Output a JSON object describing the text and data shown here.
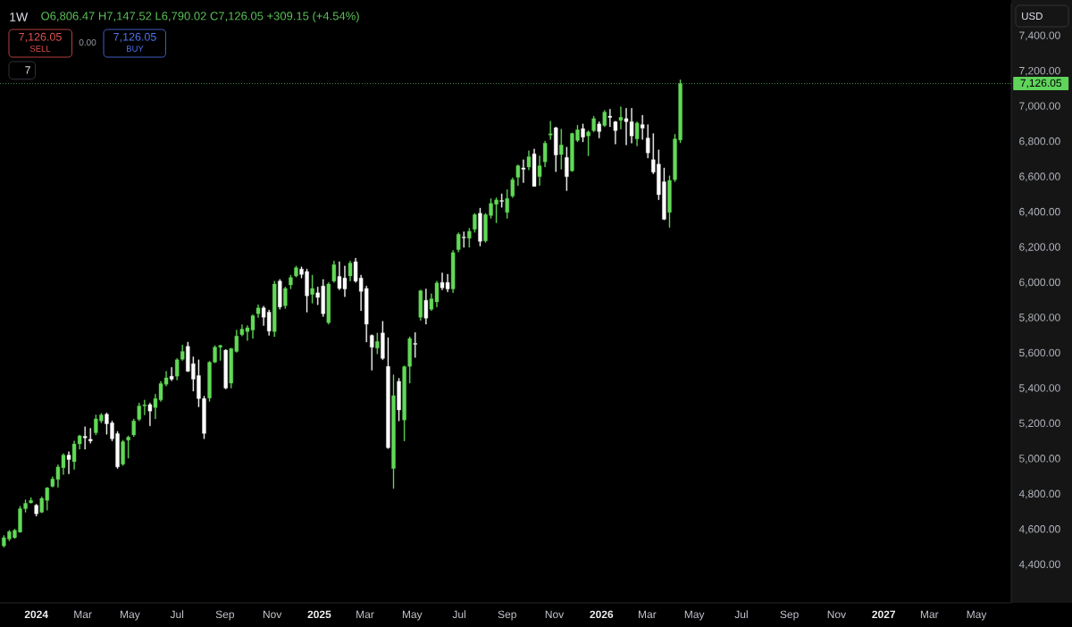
{
  "chart_data": {
    "type": "candlestick",
    "title": "1W",
    "subtitle": "O6,806.47 H7,147.52 L6,790.02 C7,126.05 +309.15 (+4.54%)",
    "x": [
      "2023-11-20",
      "2023-11-27",
      "2023-12-04",
      "2023-12-11",
      "2023-12-18",
      "2023-12-25",
      "2024-01-01",
      "2024-01-08",
      "2024-01-15",
      "2024-01-22",
      "2024-01-29",
      "2024-02-05",
      "2024-02-12",
      "2024-02-19",
      "2024-02-26",
      "2024-03-04",
      "2024-03-11",
      "2024-03-18",
      "2024-03-25",
      "2024-04-01",
      "2024-04-08",
      "2024-04-15",
      "2024-04-22",
      "2024-04-29",
      "2024-05-06",
      "2024-05-13",
      "2024-05-20",
      "2024-05-27",
      "2024-06-03",
      "2024-06-10",
      "2024-06-17",
      "2024-06-24",
      "2024-07-01",
      "2024-07-08",
      "2024-07-15",
      "2024-07-22",
      "2024-07-29",
      "2024-08-05",
      "2024-08-12",
      "2024-08-19",
      "2024-08-26",
      "2024-09-02",
      "2024-09-09",
      "2024-09-16",
      "2024-09-23",
      "2024-09-30",
      "2024-10-07",
      "2024-10-14",
      "2024-10-21",
      "2024-10-28",
      "2024-11-04",
      "2024-11-11",
      "2024-11-18",
      "2024-11-25",
      "2024-12-02",
      "2024-12-09",
      "2024-12-16",
      "2024-12-23",
      "2024-12-30",
      "2025-01-06",
      "2025-01-13",
      "2025-01-20",
      "2025-01-27",
      "2025-02-03",
      "2025-02-10",
      "2025-02-17",
      "2025-02-24",
      "2025-03-03",
      "2025-03-10",
      "2025-03-17",
      "2025-03-24",
      "2025-03-31",
      "2025-04-07",
      "2025-04-14",
      "2025-04-21",
      "2025-04-28",
      "2025-05-05",
      "2025-05-12",
      "2025-05-19",
      "2025-05-26",
      "2025-06-02",
      "2025-06-09",
      "2025-06-16",
      "2025-06-23",
      "2025-06-30",
      "2025-07-07",
      "2025-07-14",
      "2025-07-21",
      "2025-07-28",
      "2025-08-04",
      "2025-08-11",
      "2025-08-18",
      "2025-08-25",
      "2025-09-01",
      "2025-09-08",
      "2025-09-15",
      "2025-09-22",
      "2025-09-29",
      "2025-10-06",
      "2025-10-13",
      "2025-10-20",
      "2025-10-27",
      "2025-11-03",
      "2025-11-10",
      "2025-11-17",
      "2025-11-24",
      "2025-12-01",
      "2025-12-08",
      "2025-12-15",
      "2025-12-22",
      "2025-12-29",
      "2026-01-05",
      "2026-01-12",
      "2026-01-19",
      "2026-01-26",
      "2026-02-02",
      "2026-02-09",
      "2026-02-16",
      "2026-02-23",
      "2026-03-02",
      "2026-03-09",
      "2026-03-16",
      "2026-03-23",
      "2026-03-30",
      "2026-04-06",
      "2026-04-13"
    ],
    "ohlc": [
      [
        4503,
        4562,
        4495,
        4550
      ],
      [
        4542,
        4592,
        4532,
        4584
      ],
      [
        4550,
        4599,
        4545,
        4592
      ],
      [
        4582,
        4728,
        4579,
        4714
      ],
      [
        4714,
        4765,
        4694,
        4745
      ],
      [
        4748,
        4778,
        4745,
        4761
      ],
      [
        4734,
        4740,
        4672,
        4685
      ],
      [
        4694,
        4782,
        4690,
        4773
      ],
      [
        4761,
        4836,
        4706,
        4832
      ],
      [
        4841,
        4896,
        4836,
        4883
      ],
      [
        4880,
        4964,
        4836,
        4951
      ],
      [
        4947,
        5027,
        4908,
        5018
      ],
      [
        5018,
        5038,
        4912,
        4993
      ],
      [
        4981,
        5099,
        4937,
        5082
      ],
      [
        5082,
        5133,
        5052,
        5128
      ],
      [
        5125,
        5179,
        5052,
        5116
      ],
      [
        5108,
        5170,
        5086,
        5099
      ],
      [
        5145,
        5246,
        5133,
        5224
      ],
      [
        5212,
        5255,
        5201,
        5246
      ],
      [
        5250,
        5258,
        5136,
        5196
      ],
      [
        5201,
        5212,
        5099,
        5111
      ],
      [
        5140,
        5153,
        4942,
        4951
      ],
      [
        4967,
        5103,
        4959,
        5094
      ],
      [
        5103,
        5128,
        5001,
        5120
      ],
      [
        5133,
        5224,
        5123,
        5212
      ],
      [
        5221,
        5314,
        5212,
        5297
      ],
      [
        5297,
        5331,
        5246,
        5303
      ],
      [
        5305,
        5314,
        5184,
        5268
      ],
      [
        5288,
        5364,
        5224,
        5339
      ],
      [
        5331,
        5437,
        5322,
        5424
      ],
      [
        5420,
        5494,
        5410,
        5457
      ],
      [
        5466,
        5516,
        5440,
        5449
      ],
      [
        5466,
        5567,
        5444,
        5559
      ],
      [
        5562,
        5643,
        5555,
        5606
      ],
      [
        5635,
        5660,
        5491,
        5494
      ],
      [
        5537,
        5576,
        5381,
        5449
      ],
      [
        5469,
        5559,
        5292,
        5339
      ],
      [
        5339,
        5353,
        5111,
        5141
      ],
      [
        5342,
        5550,
        5322,
        5545
      ],
      [
        5545,
        5640,
        5542,
        5631
      ],
      [
        5631,
        5643,
        5555,
        5640
      ],
      [
        5614,
        5618,
        5393,
        5398
      ],
      [
        5427,
        5626,
        5398,
        5623
      ],
      [
        5606,
        5728,
        5601,
        5694
      ],
      [
        5702,
        5758,
        5694,
        5733
      ],
      [
        5719,
        5753,
        5668,
        5741
      ],
      [
        5728,
        5816,
        5680,
        5809
      ],
      [
        5821,
        5871,
        5799,
        5854
      ],
      [
        5854,
        5863,
        5753,
        5800
      ],
      [
        5829,
        5842,
        5697,
        5722
      ],
      [
        5719,
        6006,
        5690,
        5989
      ],
      [
        6006,
        6015,
        5846,
        5859
      ],
      [
        5866,
        5973,
        5849,
        5964
      ],
      [
        5984,
        6040,
        5961,
        6026
      ],
      [
        6035,
        6091,
        6028,
        6082
      ],
      [
        6074,
        6086,
        6023,
        6043
      ],
      [
        6060,
        6074,
        5829,
        5922
      ],
      [
        5930,
        6040,
        5880,
        5964
      ],
      [
        5939,
        5973,
        5871,
        5913
      ],
      [
        5978,
        6015,
        5804,
        5821
      ],
      [
        5770,
        5998,
        5761,
        5989
      ],
      [
        6006,
        6120,
        5998,
        6099
      ],
      [
        6032,
        6116,
        5956,
        5964
      ],
      [
        6023,
        6091,
        5917,
        5961
      ],
      [
        6035,
        6120,
        6006,
        6108
      ],
      [
        6116,
        6136,
        5998,
        6006
      ],
      [
        6023,
        6040,
        5837,
        5947
      ],
      [
        5964,
        5978,
        5660,
        5761
      ],
      [
        5697,
        5702,
        5500,
        5630
      ],
      [
        5626,
        5711,
        5592,
        5663
      ],
      [
        5711,
        5778,
        5559,
        5567
      ],
      [
        5521,
        5685,
        5055,
        5060
      ],
      [
        4942,
        5474,
        4829,
        5356
      ],
      [
        5437,
        5454,
        5212,
        5275
      ],
      [
        5217,
        5525,
        5099,
        5520
      ],
      [
        5522,
        5690,
        5427,
        5680
      ],
      [
        5652,
        5714,
        5572,
        5647
      ],
      [
        5800,
        5956,
        5782,
        5951
      ],
      [
        5897,
        5961,
        5761,
        5795
      ],
      [
        5846,
        5934,
        5837,
        5905
      ],
      [
        5888,
        6006,
        5859,
        5995
      ],
      [
        5998,
        6052,
        5956,
        5967
      ],
      [
        5998,
        6045,
        5944,
        5961
      ],
      [
        5961,
        6180,
        5939,
        6167
      ],
      [
        6184,
        6280,
        6170,
        6272
      ],
      [
        6255,
        6285,
        6197,
        6251
      ],
      [
        6248,
        6305,
        6197,
        6288
      ],
      [
        6299,
        6390,
        6282,
        6383
      ],
      [
        6390,
        6420,
        6204,
        6231
      ],
      [
        6233,
        6390,
        6225,
        6383
      ],
      [
        6378,
        6474,
        6361,
        6446
      ],
      [
        6441,
        6479,
        6336,
        6466
      ],
      [
        6463,
        6501,
        6424,
        6457
      ],
      [
        6395,
        6525,
        6361,
        6474
      ],
      [
        6488,
        6592,
        6479,
        6581
      ],
      [
        6594,
        6665,
        6547,
        6660
      ],
      [
        6648,
        6694,
        6564,
        6640
      ],
      [
        6653,
        6745,
        6636,
        6711
      ],
      [
        6728,
        6755,
        6542,
        6543
      ],
      [
        6598,
        6716,
        6547,
        6660
      ],
      [
        6682,
        6800,
        6653,
        6788
      ],
      [
        6834,
        6913,
        6809,
        6842
      ],
      [
        6876,
        6880,
        6626,
        6721
      ],
      [
        6724,
        6868,
        6640,
        6778
      ],
      [
        6707,
        6766,
        6518,
        6598
      ],
      [
        6631,
        6846,
        6626,
        6843
      ],
      [
        6804,
        6890,
        6795,
        6864
      ],
      [
        6871,
        6897,
        6795,
        6822
      ],
      [
        6829,
        6859,
        6716,
        6851
      ],
      [
        6859,
        6941,
        6851,
        6927
      ],
      [
        6897,
        6910,
        6817,
        6854
      ],
      [
        6888,
        6974,
        6881,
        6964
      ],
      [
        6941,
        6981,
        6881,
        6934
      ],
      [
        6910,
        6913,
        6783,
        6859
      ],
      [
        6918,
        6995,
        6868,
        6935
      ],
      [
        6927,
        6986,
        6778,
        6910
      ],
      [
        6910,
        6986,
        6788,
        6829
      ],
      [
        6812,
        6910,
        6772,
        6902
      ],
      [
        6893,
        6947,
        6809,
        6873
      ],
      [
        6817,
        6893,
        6704,
        6733
      ],
      [
        6694,
        6843,
        6614,
        6623
      ],
      [
        6669,
        6750,
        6467,
        6496
      ],
      [
        6569,
        6648,
        6353,
        6356
      ],
      [
        6395,
        6603,
        6310,
        6577
      ],
      [
        6581,
        6839,
        6569,
        6812
      ],
      [
        6806.47,
        7147.52,
        6790.02,
        7126.05
      ]
    ],
    "colors": [
      "#62d957",
      "#62d957",
      "#62d957",
      "#62d957",
      "#62d957",
      "#62d957",
      "#ffffff",
      "#62d957",
      "#62d957",
      "#62d957",
      "#62d957",
      "#62d957",
      "#ffffff",
      "#62d957",
      "#62d957",
      "#ffffff",
      "#ffffff",
      "#62d957",
      "#62d957",
      "#ffffff",
      "#ffffff",
      "#ffffff",
      "#62d957",
      "#62d957",
      "#62d957",
      "#62d957",
      "#62d957",
      "#ffffff",
      "#62d957",
      "#62d957",
      "#62d957",
      "#ffffff",
      "#62d957",
      "#62d957",
      "#ffffff",
      "#ffffff",
      "#ffffff",
      "#ffffff",
      "#62d957",
      "#62d957",
      "#62d957",
      "#ffffff",
      "#62d957",
      "#62d957",
      "#62d957",
      "#62d957",
      "#62d957",
      "#62d957",
      "#ffffff",
      "#ffffff",
      "#62d957",
      "#ffffff",
      "#62d957",
      "#62d957",
      "#62d957",
      "#ffffff",
      "#ffffff",
      "#62d957",
      "#ffffff",
      "#ffffff",
      "#62d957",
      "#62d957",
      "#ffffff",
      "#ffffff",
      "#62d957",
      "#ffffff",
      "#ffffff",
      "#ffffff",
      "#ffffff",
      "#62d957",
      "#ffffff",
      "#ffffff",
      "#62d957",
      "#ffffff",
      "#62d957",
      "#62d957",
      "#ffffff",
      "#62d957",
      "#ffffff",
      "#62d957",
      "#62d957",
      "#ffffff",
      "#ffffff",
      "#62d957",
      "#62d957",
      "#ffffff",
      "#62d957",
      "#62d957",
      "#ffffff",
      "#62d957",
      "#62d957",
      "#62d957",
      "#ffffff",
      "#62d957",
      "#62d957",
      "#62d957",
      "#ffffff",
      "#62d957",
      "#ffffff",
      "#62d957",
      "#62d957",
      "#62d957",
      "#ffffff",
      "#62d957",
      "#ffffff",
      "#62d957",
      "#62d957",
      "#ffffff",
      "#62d957",
      "#62d957",
      "#ffffff",
      "#62d957",
      "#ffffff",
      "#ffffff",
      "#62d957",
      "#ffffff",
      "#ffffff",
      "#62d957",
      "#ffffff",
      "#ffffff",
      "#ffffff",
      "#ffffff",
      "#ffffff",
      "#62d957",
      "#62d957",
      "#62d957"
    ],
    "xlim": [
      "2023-11-15",
      "2027-06-15"
    ],
    "xticks": [
      {
        "value": "2024-01-01",
        "label": "2024"
      },
      {
        "value": "2024-03-01",
        "label": "Mar"
      },
      {
        "value": "2024-05-01",
        "label": "May"
      },
      {
        "value": "2024-07-01",
        "label": "Jul"
      },
      {
        "value": "2024-09-01",
        "label": "Sep"
      },
      {
        "value": "2024-11-01",
        "label": "Nov"
      },
      {
        "value": "2025-01-01",
        "label": "2025"
      },
      {
        "value": "2025-03-01",
        "label": "Mar"
      },
      {
        "value": "2025-05-01",
        "label": "May"
      },
      {
        "value": "2025-07-01",
        "label": "Jul"
      },
      {
        "value": "2025-09-01",
        "label": "Sep"
      },
      {
        "value": "2025-11-01",
        "label": "Nov"
      },
      {
        "value": "2026-01-01",
        "label": "2026"
      },
      {
        "value": "2026-03-01",
        "label": "Mar"
      },
      {
        "value": "2026-05-01",
        "label": "May"
      },
      {
        "value": "2026-07-01",
        "label": "Jul"
      },
      {
        "value": "2026-09-01",
        "label": "Sep"
      },
      {
        "value": "2026-11-01",
        "label": "Nov"
      },
      {
        "value": "2027-01-01",
        "label": "2027"
      },
      {
        "value": "2027-03-01",
        "label": "Mar"
      },
      {
        "value": "2027-05-01",
        "label": "May"
      }
    ],
    "ylim": [
      4180,
      7580
    ],
    "yticks": [
      {
        "value": 4400,
        "label": "4,400.00"
      },
      {
        "value": 4600,
        "label": "4,600.00"
      },
      {
        "value": 4800,
        "label": "4,800.00"
      },
      {
        "value": 5000,
        "label": "5,000.00"
      },
      {
        "value": 5200,
        "label": "5,200.00"
      },
      {
        "value": 5400,
        "label": "5,400.00"
      },
      {
        "value": 5600,
        "label": "5,600.00"
      },
      {
        "value": 5800,
        "label": "5,800.00"
      },
      {
        "value": 6000,
        "label": "6,000.00"
      },
      {
        "value": 6200,
        "label": "6,200.00"
      },
      {
        "value": 6400,
        "label": "6,400.00"
      },
      {
        "value": 6600,
        "label": "6,600.00"
      },
      {
        "value": 6800,
        "label": "6,800.00"
      },
      {
        "value": 7000,
        "label": "7,000.00"
      },
      {
        "value": 7200,
        "label": "7,200.00"
      },
      {
        "value": 7400,
        "label": "7,400.00"
      }
    ],
    "ref_lines": [
      {
        "axis": "y",
        "value": 7126.05,
        "label": "7,126.05",
        "color": "#5fd35a",
        "line_style": "dotted"
      }
    ],
    "annotations": [
      "7,126.05",
      "SELL",
      "0.00",
      "7,126.05",
      "BUY",
      "7",
      "USD"
    ]
  }
}
